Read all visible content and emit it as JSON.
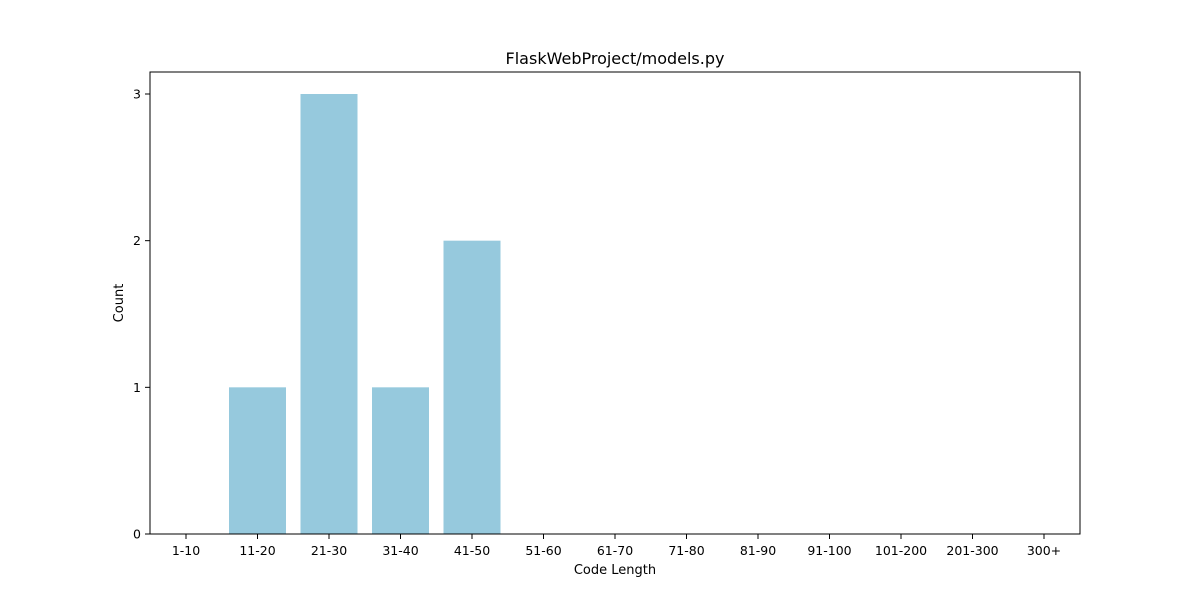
{
  "chart_data": {
    "type": "bar",
    "title": "FlaskWebProject/models.py",
    "xlabel": "Code Length",
    "ylabel": "Count",
    "categories": [
      "1-10",
      "11-20",
      "21-30",
      "31-40",
      "41-50",
      "51-60",
      "61-70",
      "71-80",
      "81-90",
      "91-100",
      "101-200",
      "201-300",
      "300+"
    ],
    "values": [
      0,
      1,
      3,
      1,
      2,
      0,
      0,
      0,
      0,
      0,
      0,
      0,
      0
    ],
    "ylim": [
      0,
      3.15
    ],
    "yticks": [
      "0",
      "1",
      "2",
      "3"
    ],
    "grid": false,
    "legend": "none",
    "colors": {
      "bar": "#96c9dd",
      "axis": "#000000",
      "background": "#ffffff"
    }
  }
}
